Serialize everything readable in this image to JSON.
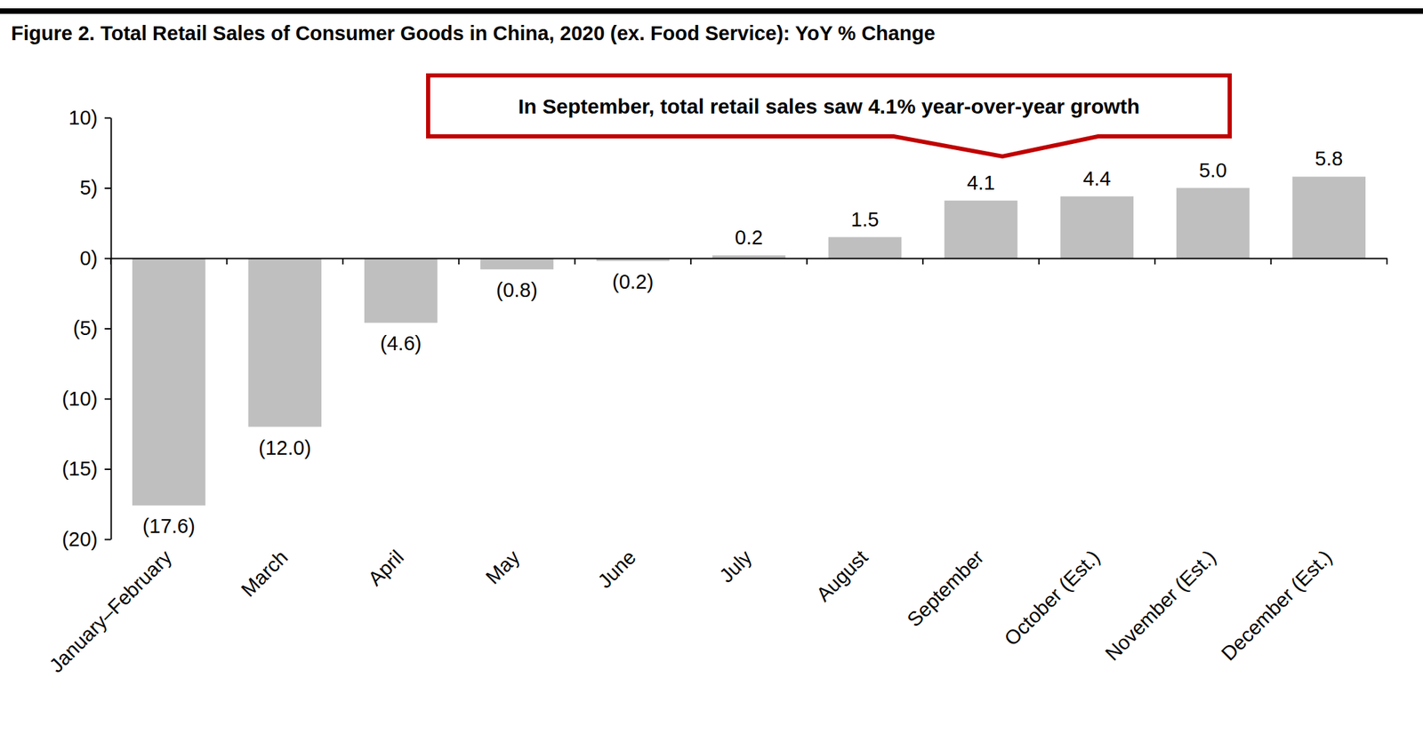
{
  "chart_data": {
    "type": "bar",
    "title": "Figure 2. Total Retail Sales of Consumer Goods in China, 2020 (ex. Food Service): YoY % Change",
    "annotation": "In September, total retail sales saw 4.1% year-over-year growth",
    "categories": [
      "January–February",
      "March",
      "April",
      "May",
      "June",
      "July",
      "August",
      "September",
      "October (Est.)",
      "November (Est.)",
      "December (Est.)"
    ],
    "values": [
      -17.6,
      -12.0,
      -4.6,
      -0.8,
      -0.2,
      0.2,
      1.5,
      4.1,
      4.4,
      5.0,
      5.8
    ],
    "value_labels": [
      "(17.6)",
      "(12.0)",
      "(4.6)",
      "(0.8)",
      "(0.2)",
      "0.2",
      "1.5",
      "4.1",
      "4.4",
      "5.0",
      "5.8"
    ],
    "color": "#bfbfbf",
    "ylim": [
      -20,
      10
    ],
    "yticks": [
      {
        "value": -20,
        "label": "(20)"
      },
      {
        "value": -15,
        "label": "(15)"
      },
      {
        "value": -10,
        "label": "(10)"
      },
      {
        "value": -5,
        "label": "(5)"
      },
      {
        "value": 0,
        "label": "0)"
      },
      {
        "value": 5,
        "label": "5)"
      },
      {
        "value": 10,
        "label": "10)"
      }
    ],
    "grid": false,
    "data_labels": true
  }
}
